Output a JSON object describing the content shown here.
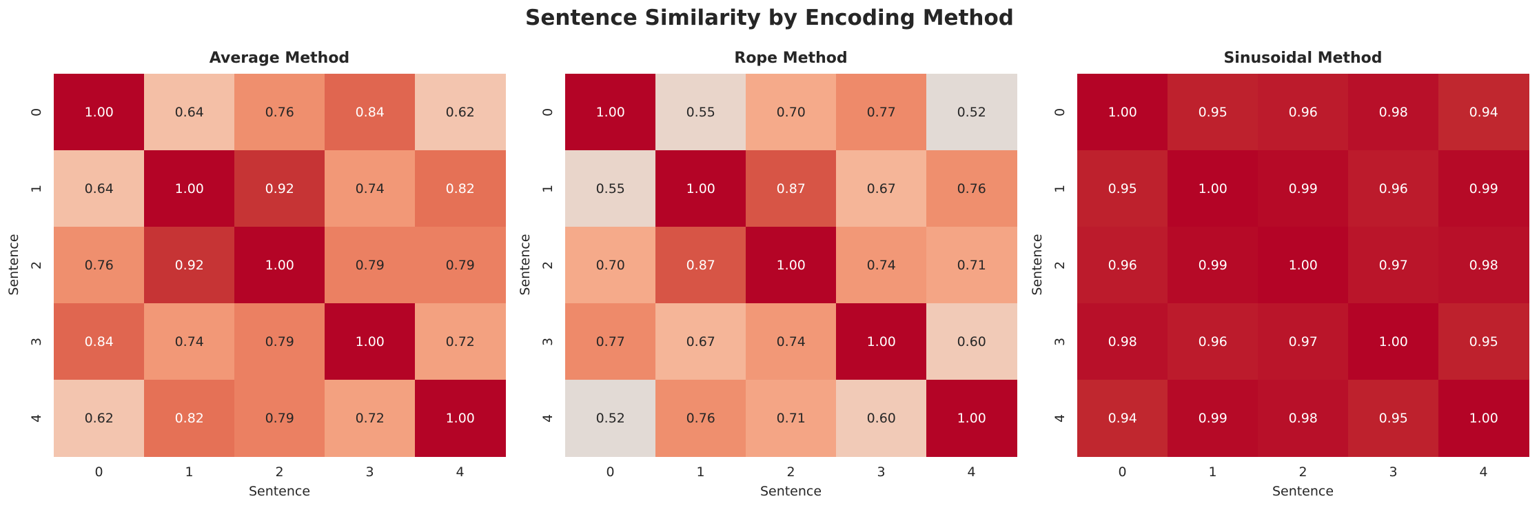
{
  "title": "Sentence Similarity by Encoding Method",
  "chart_data": [
    {
      "type": "heatmap",
      "title": "Average Method",
      "xlabel": "Sentence",
      "ylabel": "Sentence",
      "x_ticks": [
        "0",
        "1",
        "2",
        "3",
        "4"
      ],
      "y_ticks": [
        "0",
        "1",
        "2",
        "3",
        "4"
      ],
      "colormap": "coolwarm",
      "vrange": [
        0,
        1
      ],
      "colorbar": false,
      "values": [
        [
          1.0,
          0.64,
          0.76,
          0.84,
          0.62
        ],
        [
          0.64,
          1.0,
          0.92,
          0.74,
          0.82
        ],
        [
          0.76,
          0.92,
          1.0,
          0.79,
          0.79
        ],
        [
          0.84,
          0.74,
          0.79,
          1.0,
          0.72
        ],
        [
          0.62,
          0.82,
          0.79,
          0.72,
          1.0
        ]
      ]
    },
    {
      "type": "heatmap",
      "title": "Rope Method",
      "xlabel": "Sentence",
      "ylabel": "Sentence",
      "x_ticks": [
        "0",
        "1",
        "2",
        "3",
        "4"
      ],
      "y_ticks": [
        "0",
        "1",
        "2",
        "3",
        "4"
      ],
      "colormap": "coolwarm",
      "vrange": [
        0,
        1
      ],
      "colorbar": false,
      "values": [
        [
          1.0,
          0.55,
          0.7,
          0.77,
          0.52
        ],
        [
          0.55,
          1.0,
          0.87,
          0.67,
          0.76
        ],
        [
          0.7,
          0.87,
          1.0,
          0.74,
          0.71
        ],
        [
          0.77,
          0.67,
          0.74,
          1.0,
          0.6
        ],
        [
          0.52,
          0.76,
          0.71,
          0.6,
          1.0
        ]
      ]
    },
    {
      "type": "heatmap",
      "title": "Sinusoidal Method",
      "xlabel": "Sentence",
      "ylabel": "Sentence",
      "x_ticks": [
        "0",
        "1",
        "2",
        "3",
        "4"
      ],
      "y_ticks": [
        "0",
        "1",
        "2",
        "3",
        "4"
      ],
      "colormap": "coolwarm",
      "vrange": [
        0,
        1
      ],
      "colorbar": false,
      "values": [
        [
          1.0,
          0.95,
          0.96,
          0.98,
          0.94
        ],
        [
          0.95,
          1.0,
          0.99,
          0.96,
          0.99
        ],
        [
          0.96,
          0.99,
          1.0,
          0.97,
          0.98
        ],
        [
          0.98,
          0.96,
          0.97,
          1.0,
          0.95
        ],
        [
          0.94,
          0.99,
          0.98,
          0.95,
          1.0
        ]
      ]
    }
  ]
}
